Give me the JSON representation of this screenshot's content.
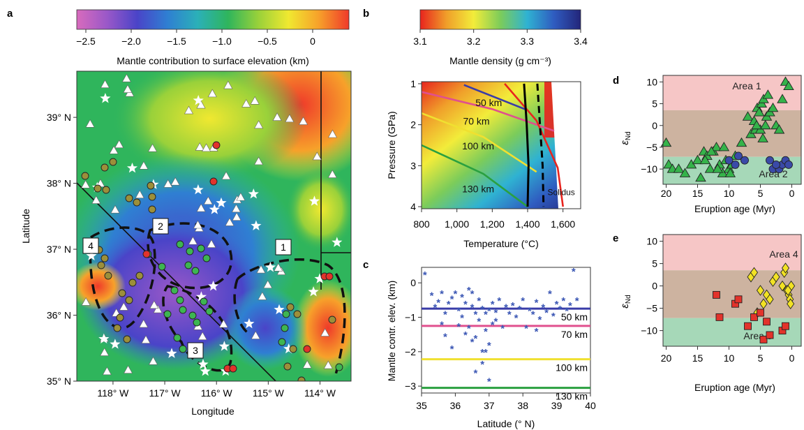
{
  "panel_a": {
    "letter": "a",
    "colorbar": {
      "ticks": [
        "−2.5",
        "−2.0",
        "−1.5",
        "−1.0",
        "−0.5",
        "0"
      ],
      "tick_values": [
        -2.5,
        -2.0,
        -1.5,
        -1.0,
        -0.5,
        0
      ],
      "range": [
        -2.6,
        0.4
      ],
      "label": "Mantle contribution to surface elevation (km)",
      "colors": [
        "#d86bbd",
        "#9a58c8",
        "#4a44c8",
        "#2f7fd2",
        "#2bb0b8",
        "#2fb55c",
        "#99d13a",
        "#f0e830",
        "#f7a12a",
        "#ef3a2a"
      ]
    },
    "map": {
      "xlabel": "Longitude",
      "ylabel": "Latitude",
      "x_ticks": [
        "118° W",
        "117° W",
        "116° W",
        "115° W",
        "114° W"
      ],
      "x_tick_values": [
        -118,
        -117,
        -116,
        -115,
        -114
      ],
      "y_ticks": [
        "35° N",
        "36° N",
        "37° N",
        "38° N",
        "39° N"
      ],
      "y_tick_values": [
        35,
        36,
        37,
        38,
        39
      ],
      "lon_range": [
        -118.7,
        -113.4
      ],
      "lat_range": [
        35.0,
        39.7
      ],
      "area_labels": [
        "1",
        "2",
        "3",
        "4"
      ],
      "dot_colors": {
        "green": "#3db552",
        "olive": "#9c8f3a",
        "red": "#e2332b"
      }
    }
  },
  "panel_b": {
    "letter": "b",
    "colorbar": {
      "ticks": [
        "3.1",
        "3.2",
        "3.3",
        "3.4"
      ],
      "tick_values": [
        3.1,
        3.2,
        3.3,
        3.4
      ],
      "range": [
        3.1,
        3.4
      ],
      "label": "Mantle density (g cm⁻³)",
      "colors": [
        "#e8241e",
        "#f0a02a",
        "#f2ec3a",
        "#7ccc5a",
        "#2fb2d2",
        "#2f5cc0",
        "#23257a"
      ]
    },
    "chart_data": {
      "type": "line",
      "xlabel": "Temperature (°C)",
      "ylabel": "Pressure (GPa)",
      "x_ticks": [
        "800",
        "1,000",
        "1,200",
        "1,400",
        "1,600"
      ],
      "x_tick_values": [
        800,
        1000,
        1200,
        1400,
        1600
      ],
      "y_ticks": [
        "1",
        "2",
        "3",
        "4"
      ],
      "y_tick_values": [
        1,
        2,
        3,
        4
      ],
      "xlim": [
        800,
        1700
      ],
      "ylim": [
        4.05,
        0.95
      ],
      "series": [
        {
          "name": "50 km",
          "color": "#3a3ca8",
          "points": [
            [
              1040,
              1.03
            ],
            [
              1390,
              1.63
            ]
          ]
        },
        {
          "name": "70 km",
          "color": "#e0508e",
          "points": [
            [
              800,
              1.2
            ],
            [
              1200,
              1.62
            ],
            [
              1550,
              2.15
            ]
          ]
        },
        {
          "name": "100 km",
          "color": "#f0e030",
          "points": [
            [
              800,
              1.72
            ],
            [
              1150,
              2.3
            ],
            [
              1450,
              3.15
            ]
          ]
        },
        {
          "name": "130 km",
          "color": "#2aa040",
          "points": [
            [
              800,
              2.5
            ],
            [
              1150,
              3.2
            ],
            [
              1400,
              4.0
            ]
          ]
        },
        {
          "name": "Solidus",
          "color": "#e8241e",
          "points": [
            [
              1270,
              1.0
            ],
            [
              1450,
              1.9
            ],
            [
              1570,
              3.05
            ],
            [
              1600,
              4.0
            ]
          ]
        },
        {
          "name": "",
          "color": "#000000",
          "dash": false,
          "points": [
            [
              1380,
              1.0
            ],
            [
              1395,
              2.0
            ],
            [
              1405,
              3.0
            ],
            [
              1400,
              4.0
            ]
          ]
        },
        {
          "name": "",
          "color": "#000000",
          "dash": true,
          "points": [
            [
              1455,
              1.0
            ],
            [
              1470,
              2.0
            ],
            [
              1485,
              3.0
            ],
            [
              1490,
              4.0
            ]
          ]
        }
      ],
      "labels": {
        "l50": "50 km",
        "l70": "70 km",
        "l100": "100 km",
        "l130": "130 km",
        "solidus": "Solidus"
      }
    }
  },
  "panel_c": {
    "letter": "c",
    "chart_data": {
      "type": "scatter",
      "xlabel": "Latitude (° N)",
      "ylabel": "Mantle contr. elev. (km)",
      "x_ticks": [
        "35",
        "36",
        "37",
        "38",
        "39",
        "40"
      ],
      "x_tick_values": [
        35,
        36,
        37,
        38,
        39,
        40
      ],
      "y_ticks": [
        "0",
        "−1",
        "−2",
        "−3"
      ],
      "y_tick_values": [
        0,
        -1,
        -2,
        -3
      ],
      "xlim": [
        35,
        40
      ],
      "ylim": [
        -3.2,
        0.45
      ],
      "points_x": [
        35.1,
        35.3,
        35.4,
        35.5,
        35.6,
        35.6,
        35.7,
        35.8,
        35.9,
        36.0,
        36.1,
        36.2,
        36.2,
        36.3,
        36.4,
        36.4,
        36.5,
        36.5,
        36.6,
        36.6,
        36.7,
        36.7,
        36.8,
        36.8,
        36.9,
        36.9,
        37.0,
        37.0,
        37.1,
        37.1,
        37.2,
        37.3,
        37.4,
        37.5,
        37.6,
        37.7,
        37.8,
        37.9,
        38.0,
        38.1,
        38.2,
        38.3,
        38.4,
        38.5,
        38.6,
        38.7,
        38.8,
        38.9,
        39.0,
        39.1,
        39.2,
        39.3,
        39.4,
        39.5,
        39.6,
        35.9,
        36.3,
        36.6,
        36.9,
        37.0,
        35.7,
        36.1,
        36.5,
        36.8,
        37.2,
        38.4
      ],
      "points_y": [
        0.25,
        -0.35,
        -0.7,
        -0.55,
        -0.3,
        -1.2,
        -0.9,
        -0.6,
        -0.45,
        -0.3,
        -0.8,
        -0.4,
        -1.0,
        -0.6,
        -0.2,
        -1.3,
        -0.7,
        -0.3,
        -0.9,
        -1.6,
        -0.5,
        -1.1,
        -0.75,
        -2.0,
        -0.9,
        -1.4,
        -2.85,
        -0.8,
        -1.2,
        -0.6,
        -0.85,
        -0.5,
        -1.3,
        -0.7,
        -0.9,
        -0.65,
        -1.0,
        -0.75,
        -0.5,
        -1.3,
        -0.8,
        -0.9,
        -0.55,
        -1.05,
        -0.7,
        -0.85,
        -0.3,
        -0.95,
        -0.6,
        -0.75,
        -0.5,
        -0.8,
        -0.65,
        0.35,
        -0.5,
        -1.9,
        -1.5,
        -2.6,
        -2.0,
        -1.8,
        -1.55,
        -1.25,
        -1.7,
        -2.35,
        -1.1,
        -1.4
      ],
      "series": [
        {
          "name": "50 km",
          "y": -0.75,
          "color": "#3a3ca8"
        },
        {
          "name": "70 km",
          "y": -1.25,
          "color": "#e0508e"
        },
        {
          "name": "100 km",
          "y": -2.22,
          "color": "#f0e030"
        },
        {
          "name": "130 km",
          "y": -3.05,
          "color": "#2aa040"
        }
      ],
      "point_color": "#3a56b4"
    }
  },
  "panel_d": {
    "letter": "d",
    "chart_data": {
      "type": "scatter",
      "xlabel": "Eruption age (Myr)",
      "ylabel": "εNd",
      "ylabel_main": "ε",
      "ylabel_sub": "Nd",
      "x_ticks": [
        "20",
        "15",
        "10",
        "5",
        "0"
      ],
      "x_tick_values": [
        20,
        15,
        10,
        5,
        0
      ],
      "y_ticks": [
        "10",
        "5",
        "0",
        "−5",
        "−10"
      ],
      "y_tick_values": [
        10,
        5,
        0,
        -5,
        -10
      ],
      "xlim": [
        20.5,
        -1.5
      ],
      "ylim": [
        -13.5,
        11.5
      ],
      "bands": [
        {
          "from": 3.5,
          "to": 11.5,
          "color": "#f6c6c6"
        },
        {
          "from": -7.2,
          "to": 3.5,
          "color": "#cdb3a0"
        },
        {
          "from": -13.5,
          "to": -7.2,
          "color": "#a6d8b8"
        }
      ],
      "annotations": [
        "Area 1",
        "Area 2"
      ],
      "series": [
        {
          "name": "Area 1",
          "marker": "triangle",
          "color": "#35b34a",
          "x": [
            20,
            19.6,
            19,
            18,
            17,
            16,
            15,
            14,
            13.5,
            13,
            12.5,
            12,
            11.5,
            11,
            10.5,
            10,
            9.5,
            9,
            8,
            7,
            6.5,
            6,
            5.8,
            5.5,
            5.2,
            5,
            4.8,
            4.5,
            4.2,
            4,
            3.8,
            3.5,
            3,
            2.5,
            2,
            1.5,
            1,
            0.5,
            14.5,
            13.8,
            12.8,
            11.8,
            10.8,
            9.8,
            5.6,
            4.6
          ],
          "y": [
            -4,
            -9,
            -10,
            -10,
            -11,
            -9,
            -8,
            -6,
            -7,
            -10,
            -6,
            -5,
            -9,
            -11,
            -8,
            -10,
            -9,
            -7,
            -4,
            2,
            -2,
            1,
            -1,
            4,
            3,
            -1,
            5,
            6,
            0,
            2,
            7,
            3,
            4,
            0,
            -1,
            6,
            10,
            9,
            -12,
            -8,
            -6,
            -10,
            -5,
            -11,
            0,
            -3
          ]
        },
        {
          "name": "Area 2",
          "marker": "circle",
          "color": "#3a4aa8",
          "x": [
            10,
            9,
            8.5,
            7.5,
            3.5,
            3,
            2,
            1.5,
            1,
            0.5,
            2.5
          ],
          "y": [
            -8,
            -9,
            -7,
            -8,
            -8,
            -10,
            -10,
            -9,
            -8,
            -9,
            -9
          ]
        }
      ]
    }
  },
  "panel_e": {
    "letter": "e",
    "chart_data": {
      "type": "scatter",
      "xlabel": "Eruption age (Myr)",
      "ylabel": "εNd",
      "ylabel_main": "ε",
      "ylabel_sub": "Nd",
      "x_ticks": [
        "20",
        "15",
        "10",
        "5",
        "0"
      ],
      "x_tick_values": [
        20,
        15,
        10,
        5,
        0
      ],
      "y_ticks": [
        "10",
        "5",
        "0",
        "−5",
        "−10"
      ],
      "y_tick_values": [
        10,
        5,
        0,
        -5,
        -10
      ],
      "xlim": [
        20.5,
        -1.5
      ],
      "ylim": [
        -13.5,
        11.5
      ],
      "bands": [
        {
          "from": 3.5,
          "to": 11.5,
          "color": "#f6c6c6"
        },
        {
          "from": -7.2,
          "to": 3.5,
          "color": "#cdb3a0"
        },
        {
          "from": -13.5,
          "to": -7.2,
          "color": "#a6d8b8"
        }
      ],
      "annotations": [
        "Area 4",
        "Area 3"
      ],
      "series": [
        {
          "name": "Area 4",
          "marker": "diamond",
          "color": "#f2e224",
          "x": [
            6.5,
            6,
            5.5,
            5,
            4.5,
            4,
            3.5,
            3,
            2.5,
            1.5,
            1.2,
            1,
            0.8,
            0.5,
            0.3,
            0.2,
            0.1,
            0.6
          ],
          "y": [
            2,
            3,
            -6,
            -1,
            -4,
            -2,
            -3,
            1,
            2,
            0,
            3,
            4,
            -1,
            -2,
            -3,
            -4,
            0,
            -1
          ]
        },
        {
          "name": "Area 3",
          "marker": "square",
          "color": "#e2332b",
          "x": [
            12,
            11.5,
            9,
            8.5,
            7,
            6,
            5,
            4.5,
            4,
            3.5,
            1.5,
            1
          ],
          "y": [
            -2,
            -7,
            -4,
            -3,
            -9,
            -7,
            -6,
            -12,
            -8,
            -11,
            -10,
            -9
          ]
        }
      ]
    }
  }
}
